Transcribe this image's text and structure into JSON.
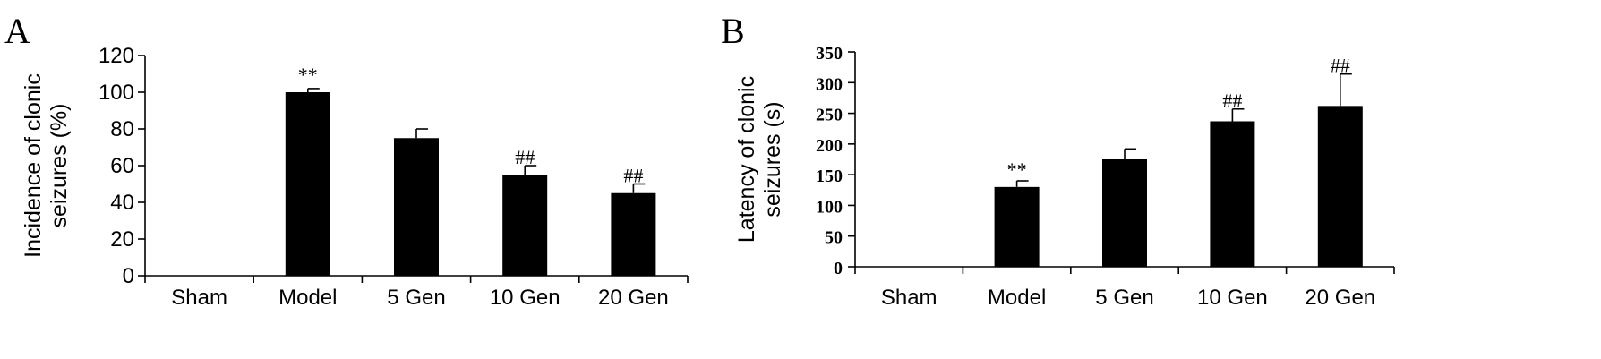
{
  "chart_data": [
    {
      "panel": "A",
      "type": "bar",
      "ylabel": "Incidence of clonic\nseizures (%)",
      "categories": [
        "Sham",
        "Model",
        "5 Gen",
        "10 Gen",
        "20 Gen"
      ],
      "values": [
        0,
        100,
        75,
        55,
        45
      ],
      "errors": [
        0,
        2,
        5,
        5,
        5
      ],
      "annotations": [
        "",
        "**",
        "",
        "##",
        "##"
      ],
      "ylim": [
        0,
        120
      ],
      "yticks": [
        0,
        20,
        40,
        60,
        80,
        100,
        120
      ],
      "grid": false
    },
    {
      "panel": "B",
      "type": "bar",
      "ylabel": "Latency of clonic\nseizures (s)",
      "categories": [
        "Sham",
        "Model",
        "5 Gen",
        "10 Gen",
        "20 Gen"
      ],
      "values": [
        0,
        130,
        175,
        237,
        262
      ],
      "errors": [
        0,
        10,
        17,
        20,
        52
      ],
      "annotations": [
        "",
        "**",
        "",
        "##",
        "##"
      ],
      "ylim": [
        0,
        350
      ],
      "yticks": [
        0,
        50,
        100,
        150,
        200,
        250,
        300,
        350
      ],
      "grid": false
    }
  ]
}
